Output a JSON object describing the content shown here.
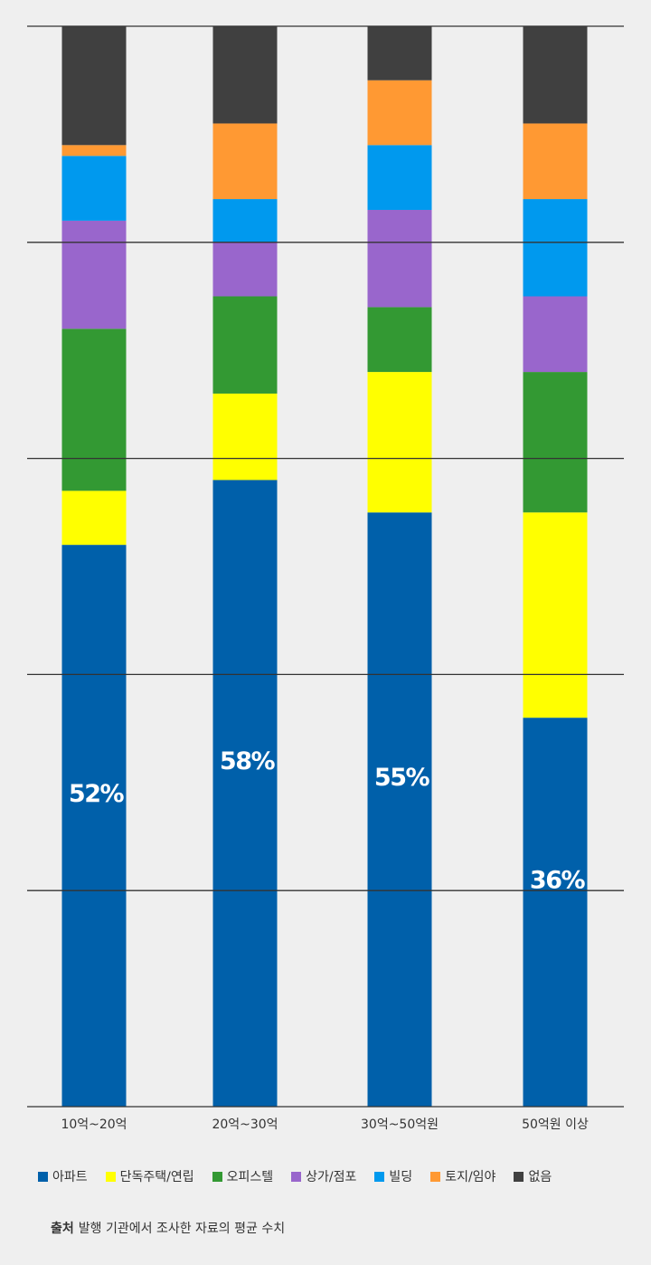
{
  "chart_data": {
    "type": "stacked_bar",
    "categories": [
      "10억~20억",
      "20억~30억",
      "30억~50억원",
      "50억원 이상"
    ],
    "series": [
      {
        "name": "아파트",
        "color": "#0060aa",
        "values": [
          52,
          58,
          55,
          36
        ],
        "value_labels": [
          "52%",
          "58%",
          "55%",
          "36%"
        ]
      },
      {
        "name": "단독주택/연립",
        "color": "#ffff00",
        "values": [
          5,
          8,
          13,
          19
        ]
      },
      {
        "name": "오피스텔",
        "color": "#339933",
        "values": [
          15,
          9,
          6,
          13
        ]
      },
      {
        "name": "상가/점포",
        "color": "#9966cc",
        "values": [
          10,
          5,
          9,
          7
        ]
      },
      {
        "name": "빌딩",
        "color": "#0099ee",
        "values": [
          6,
          4,
          6,
          9
        ]
      },
      {
        "name": "토지/임야",
        "color": "#ff9933",
        "values": [
          1,
          7,
          6,
          7
        ]
      },
      {
        "name": "없음",
        "color": "#404040",
        "values": [
          11,
          9,
          5,
          9
        ]
      }
    ],
    "ylim": [
      0,
      100
    ],
    "yticks": [
      0,
      20,
      40,
      60,
      80,
      100
    ],
    "grid": true,
    "note_label": "출처",
    "note": "발행 기관에서 조사한 자료의 평균 수치"
  }
}
